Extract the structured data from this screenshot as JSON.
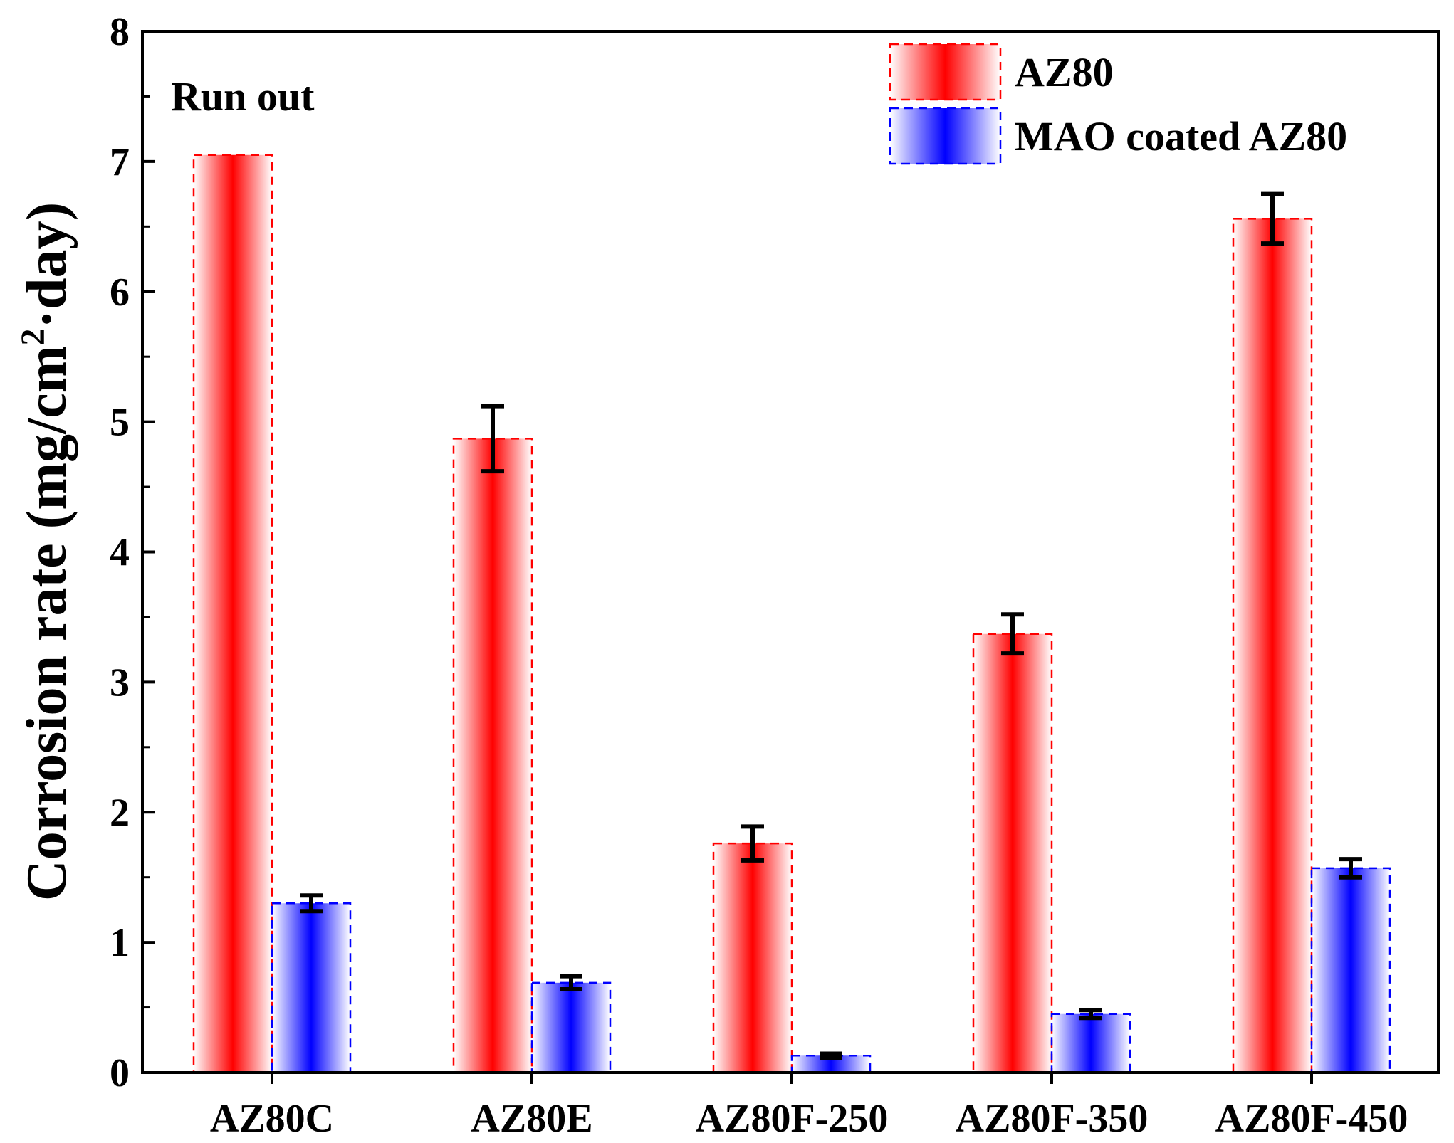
{
  "chart_data": {
    "type": "bar",
    "title": "",
    "xlabel": "",
    "ylabel": "Corrosion rate (mg/cm²·day)",
    "ylabel_parts": {
      "main": "Corrosion rate (mg/cm",
      "sup": "2",
      "tail": "·day)"
    },
    "ylim": [
      0,
      8
    ],
    "yticks": [
      "0",
      "1",
      "2",
      "3",
      "4",
      "5",
      "6",
      "7",
      "8"
    ],
    "categories": [
      "AZ80C",
      "AZ80E",
      "AZ80F-250",
      "AZ80F-350",
      "AZ80F-450"
    ],
    "series": [
      {
        "name": "AZ80",
        "color": "#ff0000",
        "values": [
          7.05,
          4.87,
          1.76,
          3.37,
          6.56
        ],
        "errors": [
          0,
          0.25,
          0.13,
          0.15,
          0.19
        ]
      },
      {
        "name": "MAO coated AZ80",
        "color": "#0000ff",
        "values": [
          1.3,
          0.69,
          0.13,
          0.45,
          1.57
        ],
        "errors": [
          0.06,
          0.05,
          0.015,
          0.03,
          0.07
        ]
      }
    ],
    "annotation": "Run out",
    "legend_position": "top-right",
    "grid": false
  }
}
